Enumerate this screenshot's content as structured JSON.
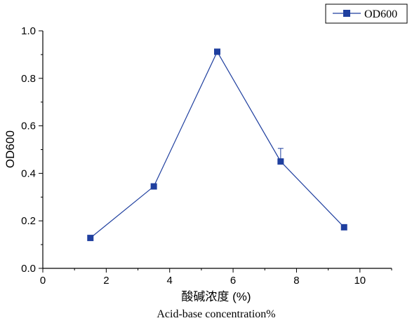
{
  "chart_data": {
    "type": "line",
    "xlabel": "酸碱浓度 (%)",
    "xlabel_secondary": "Acid-base concentration%",
    "ylabel": "OD600",
    "xlim": [
      0,
      11
    ],
    "ylim": [
      0,
      1.0
    ],
    "x_ticks": [
      0,
      2,
      4,
      6,
      8,
      10
    ],
    "y_ticks": [
      0.0,
      0.2,
      0.4,
      0.6,
      0.8,
      1.0
    ],
    "x_tick_labels": [
      "0",
      "2",
      "4",
      "6",
      "8",
      "10"
    ],
    "y_tick_labels": [
      "0.0",
      "0.2",
      "0.4",
      "0.6",
      "0.8",
      "1.0"
    ],
    "grid": false,
    "legend_position": "top-right",
    "series": [
      {
        "name": "OD600",
        "color": "#1f3f9f",
        "marker": "square",
        "x": [
          1.5,
          3.5,
          5.5,
          7.5,
          9.5
        ],
        "y": [
          0.128,
          0.345,
          0.912,
          0.45,
          0.173
        ],
        "error": [
          0.0,
          0.01,
          0.01,
          0.055,
          0.0
        ]
      }
    ]
  }
}
